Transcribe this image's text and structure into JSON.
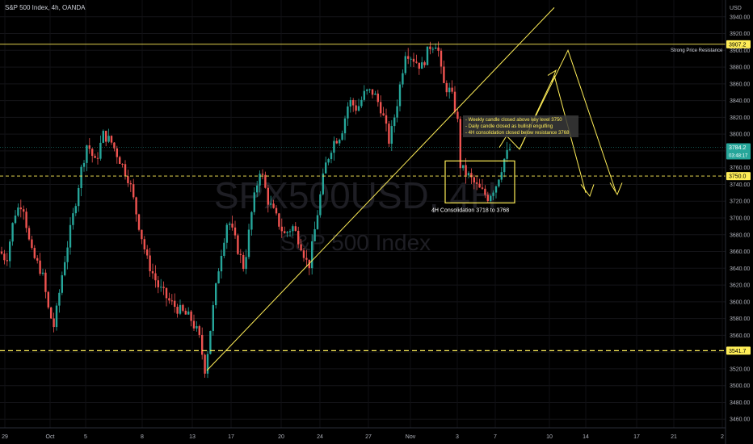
{
  "header": {
    "title": "S&P 500 Index, 4h, OANDA"
  },
  "watermark": {
    "symbol": "SPX500USD, 4H",
    "name": "S&P 500 Index"
  },
  "colors": {
    "up": "#26a69a",
    "down": "#ef5350",
    "annotation": "#ffee58",
    "axis_text": "#b2b5be",
    "background": "#000000"
  },
  "chart_data": {
    "type": "candlestick",
    "title": "S&P 500 Index, 4h, OANDA",
    "y_unit": "USD",
    "ylim": [
      3440,
      3960
    ],
    "y_ticks": [
      3460,
      3480,
      3500,
      3520,
      3540,
      3560,
      3580,
      3600,
      3620,
      3640,
      3660,
      3680,
      3700,
      3720,
      3740,
      3760,
      3780,
      3800,
      3820,
      3840,
      3860,
      3880,
      3900,
      3920,
      3940
    ],
    "x_ticks": [
      "29",
      "Oct",
      "5",
      "8",
      "13",
      "17",
      "20",
      "24",
      "27",
      "Nov",
      "3",
      "7",
      "10",
      "14",
      "17",
      "21",
      "2"
    ],
    "price_labels": [
      {
        "value": "3907.2",
        "style": "yellow-solid"
      },
      {
        "value": "3784.2",
        "sub": "03:48:17",
        "style": "green"
      },
      {
        "value": "3750.0",
        "style": "yellow-dashed"
      },
      {
        "value": "3541.7",
        "style": "yellow-dashed"
      }
    ],
    "candle_close_path": [
      [
        0,
        3660
      ],
      [
        8,
        3650
      ],
      [
        18,
        3705
      ],
      [
        28,
        3720
      ],
      [
        38,
        3660
      ],
      [
        52,
        3635
      ],
      [
        60,
        3590
      ],
      [
        67,
        3570
      ],
      [
        78,
        3640
      ],
      [
        90,
        3700
      ],
      [
        100,
        3755
      ],
      [
        108,
        3790
      ],
      [
        118,
        3765
      ],
      [
        128,
        3800
      ],
      [
        138,
        3790
      ],
      [
        148,
        3770
      ],
      [
        160,
        3745
      ],
      [
        170,
        3700
      ],
      [
        182,
        3650
      ],
      [
        196,
        3618
      ],
      [
        210,
        3600
      ],
      [
        222,
        3590
      ],
      [
        236,
        3580
      ],
      [
        246,
        3560
      ],
      [
        254,
        3518
      ],
      [
        262,
        3580
      ],
      [
        272,
        3650
      ],
      [
        282,
        3700
      ],
      [
        292,
        3670
      ],
      [
        302,
        3640
      ],
      [
        312,
        3710
      ],
      [
        322,
        3760
      ],
      [
        332,
        3720
      ],
      [
        342,
        3700
      ],
      [
        352,
        3680
      ],
      [
        362,
        3690
      ],
      [
        372,
        3670
      ],
      [
        382,
        3640
      ],
      [
        392,
        3700
      ],
      [
        402,
        3760
      ],
      [
        412,
        3790
      ],
      [
        422,
        3800
      ],
      [
        432,
        3840
      ],
      [
        442,
        3830
      ],
      [
        452,
        3850
      ],
      [
        462,
        3850
      ],
      [
        472,
        3830
      ],
      [
        482,
        3790
      ],
      [
        492,
        3840
      ],
      [
        502,
        3900
      ],
      [
        512,
        3890
      ],
      [
        522,
        3880
      ],
      [
        532,
        3905
      ],
      [
        541,
        3910
      ],
      [
        548,
        3860
      ],
      [
        558,
        3850
      ],
      [
        566,
        3820
      ],
      [
        570,
        3760
      ],
      [
        580,
        3750
      ],
      [
        592,
        3735
      ],
      [
        604,
        3725
      ],
      [
        614,
        3740
      ],
      [
        624,
        3770
      ],
      [
        632,
        3784
      ]
    ],
    "annotations": {
      "resistance_label": "Strong Price Resistance",
      "consolidation_label": "4H Consolidation 3718 to 3768",
      "notes": [
        "- Weekly candle closed above key level 3750",
        "- Daily candle closed as bullish engulfing",
        "- 4H consolidation closed below resistance 3768"
      ]
    }
  }
}
